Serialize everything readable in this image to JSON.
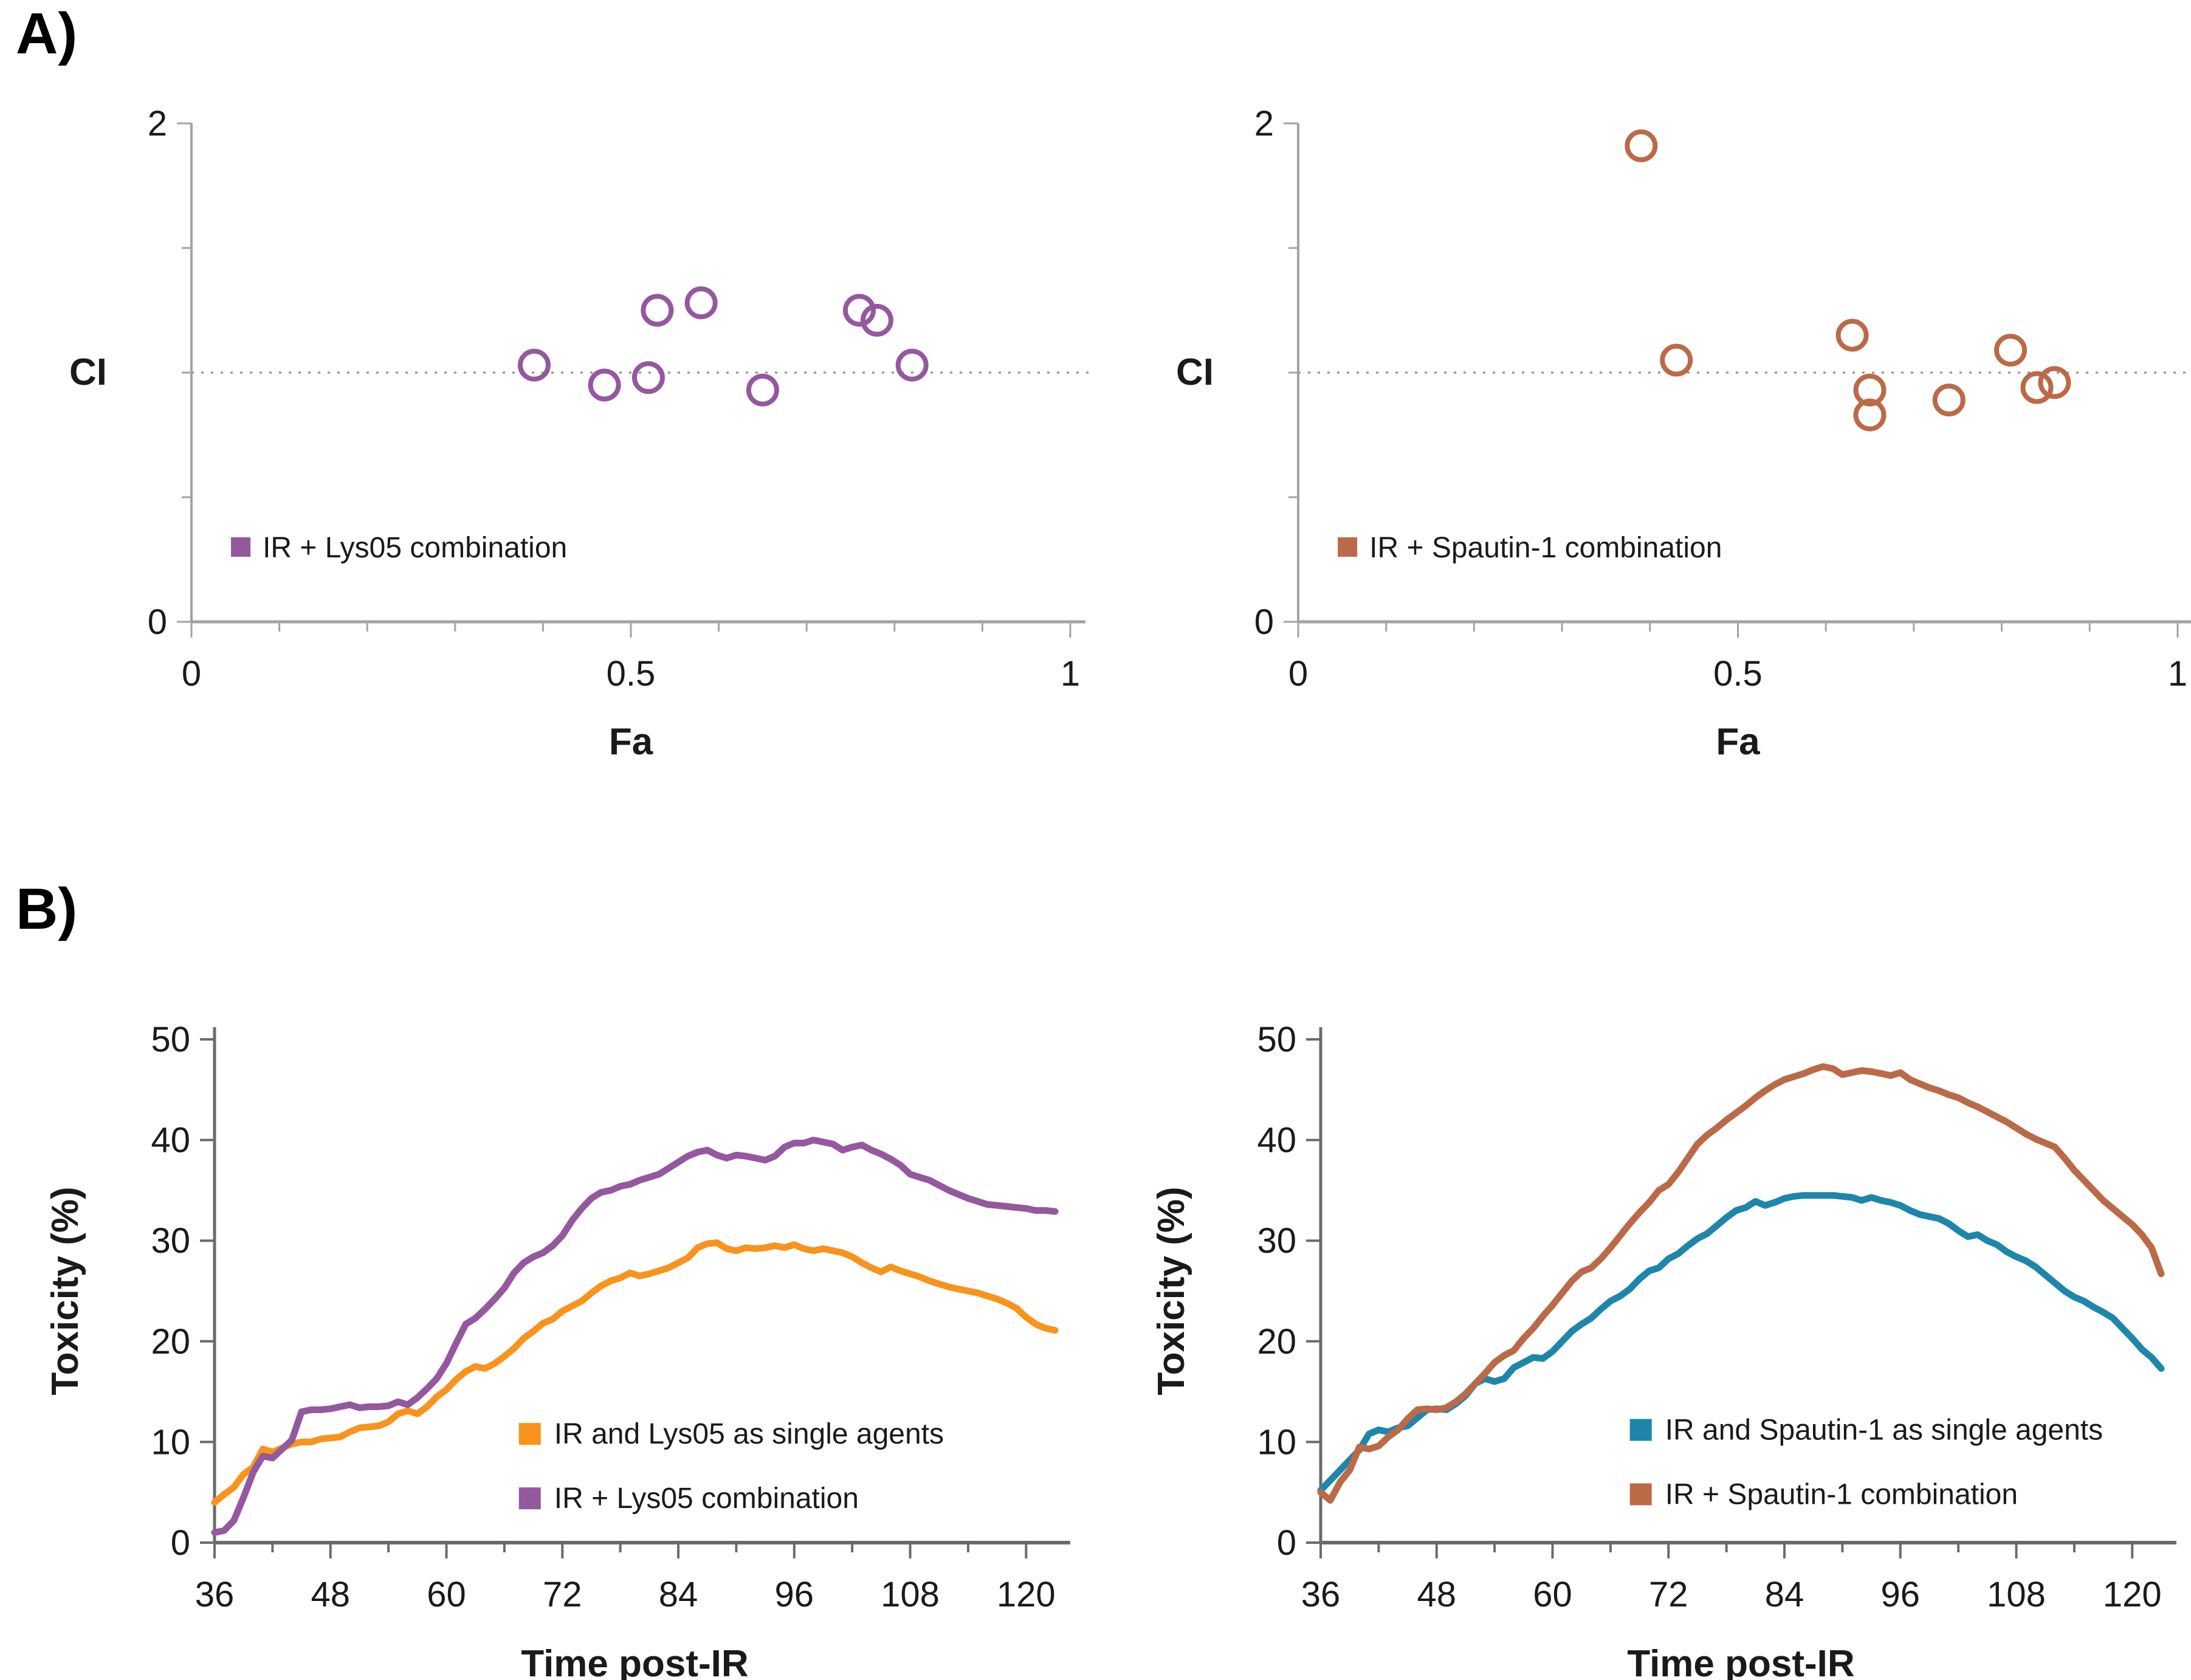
{
  "figure": {
    "panel_a_label": "A)",
    "panel_b_label": "B)"
  },
  "colors": {
    "purple": "#94589E",
    "orange": "#F8941D",
    "sienna": "#BB6A48",
    "teal": "#1E86AB",
    "axis_light": "#A3A3A3",
    "axis_dark": "#6B6B6B",
    "reference_line": "#8C8C8C",
    "text": "#1A1A1A"
  },
  "chart_data": [
    {
      "id": "ci-vs-fa-lys05",
      "panel": "A",
      "type": "scatter",
      "title": "",
      "xlabel": "Fa",
      "ylabel": "CI",
      "xlim": [
        0,
        1
      ],
      "ylim": [
        0,
        2
      ],
      "grid": false,
      "reference_line_y": 1,
      "marker": "open-circle",
      "x_ticks": [
        {
          "v": 0,
          "label": "0"
        },
        {
          "v": 0.1
        },
        {
          "v": 0.2
        },
        {
          "v": 0.3
        },
        {
          "v": 0.4
        },
        {
          "v": 0.5,
          "label": "0.5"
        },
        {
          "v": 0.6
        },
        {
          "v": 0.7
        },
        {
          "v": 0.8
        },
        {
          "v": 0.9
        },
        {
          "v": 1,
          "label": "1"
        }
      ],
      "y_ticks": [
        {
          "v": 0,
          "label": "0"
        },
        {
          "v": 0.5
        },
        {
          "v": 1
        },
        {
          "v": 1.5
        },
        {
          "v": 2,
          "label": "2"
        }
      ],
      "series": [
        {
          "name": "IR + Lys05 combination",
          "color_key": "purple",
          "points": [
            [
              0.39,
              1.03
            ],
            [
              0.47,
              0.95
            ],
            [
              0.52,
              0.98
            ],
            [
              0.53,
              1.25
            ],
            [
              0.58,
              1.28
            ],
            [
              0.65,
              0.93
            ],
            [
              0.76,
              1.25
            ],
            [
              0.78,
              1.21
            ],
            [
              0.82,
              1.03
            ]
          ]
        }
      ],
      "legend_pos": {
        "x": 0.045,
        "y": 0.3
      }
    },
    {
      "id": "ci-vs-fa-spautin1",
      "panel": "A",
      "type": "scatter",
      "title": "",
      "xlabel": "Fa",
      "ylabel": "CI",
      "xlim": [
        0,
        1
      ],
      "ylim": [
        0,
        2
      ],
      "grid": false,
      "reference_line_y": 1,
      "marker": "open-circle",
      "x_ticks": [
        {
          "v": 0,
          "label": "0"
        },
        {
          "v": 0.1
        },
        {
          "v": 0.2
        },
        {
          "v": 0.3
        },
        {
          "v": 0.4
        },
        {
          "v": 0.5,
          "label": "0.5"
        },
        {
          "v": 0.6
        },
        {
          "v": 0.7
        },
        {
          "v": 0.8
        },
        {
          "v": 0.9
        },
        {
          "v": 1,
          "label": "1"
        }
      ],
      "y_ticks": [
        {
          "v": 0,
          "label": "0"
        },
        {
          "v": 0.5
        },
        {
          "v": 1
        },
        {
          "v": 1.5
        },
        {
          "v": 2,
          "label": "2"
        }
      ],
      "series": [
        {
          "name": "IR + Spautin-1 combination",
          "color_key": "sienna",
          "points": [
            [
              0.39,
              1.91
            ],
            [
              0.43,
              1.05
            ],
            [
              0.63,
              1.15
            ],
            [
              0.65,
              0.93
            ],
            [
              0.65,
              0.83
            ],
            [
              0.74,
              0.89
            ],
            [
              0.81,
              1.09
            ],
            [
              0.84,
              0.94
            ],
            [
              0.86,
              0.96
            ]
          ]
        }
      ],
      "legend_pos": {
        "x": 0.045,
        "y": 0.3
      }
    },
    {
      "id": "toxicity-lys05",
      "panel": "B",
      "type": "line",
      "title": "",
      "xlabel": "Time post-IR",
      "ylabel": "Toxicity (%)",
      "xlim": [
        36,
        123
      ],
      "ylim": [
        0,
        50
      ],
      "grid": false,
      "x_start": 36,
      "x_step": 1,
      "x_ticks": [
        {
          "v": 36,
          "label": "36"
        },
        {
          "v": 42
        },
        {
          "v": 48,
          "label": "48"
        },
        {
          "v": 54
        },
        {
          "v": 60,
          "label": "60"
        },
        {
          "v": 66
        },
        {
          "v": 72,
          "label": "72"
        },
        {
          "v": 78
        },
        {
          "v": 84,
          "label": "84"
        },
        {
          "v": 90
        },
        {
          "v": 96,
          "label": "96"
        },
        {
          "v": 102
        },
        {
          "v": 108,
          "label": "108"
        },
        {
          "v": 114
        },
        {
          "v": 120,
          "label": "120"
        }
      ],
      "y_ticks": [
        {
          "v": 0,
          "label": "0"
        },
        {
          "v": 10,
          "label": "10"
        },
        {
          "v": 20,
          "label": "20"
        },
        {
          "v": 30,
          "label": "30"
        },
        {
          "v": 40,
          "label": "40"
        },
        {
          "v": 50,
          "label": "50"
        }
      ],
      "series": [
        {
          "name": "IR and Lys05 as single agents",
          "color_key": "orange",
          "values": [
            4.0,
            4.8,
            5.5,
            6.8,
            7.5,
            9.3,
            9.0,
            9.4,
            9.8,
            10.0,
            10.0,
            10.3,
            10.4,
            10.5,
            11.0,
            11.4,
            11.5,
            11.6,
            12.0,
            12.8,
            13.1,
            12.8,
            13.5,
            14.5,
            15.2,
            16.2,
            17.0,
            17.5,
            17.3,
            17.8,
            18.5,
            19.3,
            20.3,
            21.0,
            21.8,
            22.2,
            23.0,
            23.5,
            24.0,
            24.8,
            25.5,
            26.0,
            26.3,
            26.8,
            26.5,
            26.7,
            27.0,
            27.3,
            27.8,
            28.3,
            29.3,
            29.7,
            29.8,
            29.2,
            29.0,
            29.3,
            29.2,
            29.3,
            29.5,
            29.3,
            29.6,
            29.2,
            29.0,
            29.2,
            29.0,
            28.8,
            28.4,
            27.8,
            27.3,
            26.9,
            27.4,
            27.0,
            26.7,
            26.4,
            26.0,
            25.7,
            25.4,
            25.2,
            25.0,
            24.8,
            24.5,
            24.2,
            23.8,
            23.3,
            22.4,
            21.7,
            21.3,
            21.1
          ]
        },
        {
          "name": "IR + Lys05 combination",
          "color_key": "purple",
          "values": [
            1.0,
            1.2,
            2.2,
            4.5,
            7.0,
            8.6,
            8.4,
            9.3,
            10.2,
            13.0,
            13.2,
            13.2,
            13.3,
            13.5,
            13.7,
            13.4,
            13.5,
            13.5,
            13.6,
            14.0,
            13.7,
            14.4,
            15.3,
            16.3,
            17.8,
            19.8,
            21.7,
            22.3,
            23.2,
            24.2,
            25.3,
            26.8,
            27.8,
            28.4,
            28.8,
            29.5,
            30.5,
            32.0,
            33.2,
            34.2,
            34.8,
            35.0,
            35.4,
            35.6,
            36.0,
            36.3,
            36.6,
            37.2,
            37.8,
            38.4,
            38.8,
            39.0,
            38.5,
            38.2,
            38.5,
            38.4,
            38.2,
            38.0,
            38.4,
            39.3,
            39.7,
            39.7,
            40.0,
            39.8,
            39.6,
            39.0,
            39.3,
            39.5,
            39.0,
            38.6,
            38.1,
            37.5,
            36.6,
            36.3,
            36.0,
            35.5,
            35.0,
            34.6,
            34.2,
            33.9,
            33.6,
            33.5,
            33.4,
            33.3,
            33.2,
            33.0,
            33.0,
            32.9
          ]
        }
      ],
      "legend_pos": {
        "t": 67.5,
        "rows_v": [
          10.8,
          4.4
        ]
      }
    },
    {
      "id": "toxicity-spautin1",
      "panel": "B",
      "type": "line",
      "title": "",
      "xlabel": "Time post-IR",
      "ylabel": "Toxicity (%)",
      "xlim": [
        36,
        123
      ],
      "ylim": [
        0,
        50
      ],
      "grid": false,
      "x_start": 36,
      "x_step": 1,
      "x_ticks": [
        {
          "v": 36,
          "label": "36"
        },
        {
          "v": 42
        },
        {
          "v": 48,
          "label": "48"
        },
        {
          "v": 54
        },
        {
          "v": 60,
          "label": "60"
        },
        {
          "v": 66
        },
        {
          "v": 72,
          "label": "72"
        },
        {
          "v": 78
        },
        {
          "v": 84,
          "label": "84"
        },
        {
          "v": 90
        },
        {
          "v": 96,
          "label": "96"
        },
        {
          "v": 102
        },
        {
          "v": 108,
          "label": "108"
        },
        {
          "v": 114
        },
        {
          "v": 120,
          "label": "120"
        }
      ],
      "y_ticks": [
        {
          "v": 0,
          "label": "0"
        },
        {
          "v": 10,
          "label": "10"
        },
        {
          "v": 20,
          "label": "20"
        },
        {
          "v": 30,
          "label": "30"
        },
        {
          "v": 40,
          "label": "40"
        },
        {
          "v": 50,
          "label": "50"
        }
      ],
      "series": [
        {
          "name": "IR and Spautin-1 as single agents",
          "color_key": "teal",
          "values": [
            5.2,
            6.2,
            7.2,
            8.2,
            9.2,
            10.8,
            11.2,
            11.0,
            11.4,
            11.6,
            12.4,
            13.2,
            13.3,
            13.2,
            13.8,
            14.6,
            15.8,
            16.3,
            16.0,
            16.3,
            17.4,
            17.9,
            18.4,
            18.3,
            19.0,
            20.0,
            21.0,
            21.7,
            22.3,
            23.2,
            24.0,
            24.5,
            25.2,
            26.2,
            27.0,
            27.3,
            28.2,
            28.7,
            29.5,
            30.2,
            30.7,
            31.5,
            32.3,
            33.0,
            33.3,
            33.9,
            33.5,
            33.8,
            34.2,
            34.4,
            34.5,
            34.5,
            34.5,
            34.5,
            34.4,
            34.3,
            34.0,
            34.3,
            34.0,
            33.8,
            33.5,
            33.0,
            32.6,
            32.4,
            32.2,
            31.7,
            31.0,
            30.4,
            30.6,
            30.0,
            29.6,
            28.9,
            28.4,
            28.0,
            27.4,
            26.6,
            25.8,
            25.0,
            24.4,
            24.0,
            23.4,
            22.9,
            22.3,
            21.3,
            20.3,
            19.2,
            18.4,
            17.3
          ]
        },
        {
          "name": "IR + Spautin-1 combination",
          "color_key": "sienna",
          "values": [
            5.0,
            4.2,
            6.0,
            7.2,
            9.5,
            9.3,
            9.6,
            10.5,
            11.2,
            12.3,
            13.2,
            13.3,
            13.2,
            13.4,
            14.0,
            14.8,
            15.8,
            16.8,
            17.9,
            18.6,
            19.1,
            20.3,
            21.3,
            22.5,
            23.6,
            24.8,
            26.0,
            26.9,
            27.3,
            28.2,
            29.3,
            30.5,
            31.7,
            32.8,
            33.8,
            35.0,
            35.6,
            36.8,
            38.2,
            39.6,
            40.5,
            41.2,
            42.0,
            42.7,
            43.4,
            44.2,
            44.9,
            45.5,
            46.0,
            46.3,
            46.6,
            47.0,
            47.3,
            47.1,
            46.5,
            46.7,
            46.9,
            46.8,
            46.6,
            46.4,
            46.7,
            46.0,
            45.6,
            45.2,
            44.9,
            44.5,
            44.2,
            43.7,
            43.3,
            42.8,
            42.3,
            41.8,
            41.2,
            40.6,
            40.1,
            39.7,
            39.3,
            38.2,
            37.0,
            36.0,
            35.0,
            34.0,
            33.2,
            32.4,
            31.6,
            30.6,
            29.3,
            26.7
          ]
        }
      ],
      "legend_pos": {
        "t": 68,
        "rows_v": [
          11.2,
          4.8
        ]
      }
    }
  ]
}
